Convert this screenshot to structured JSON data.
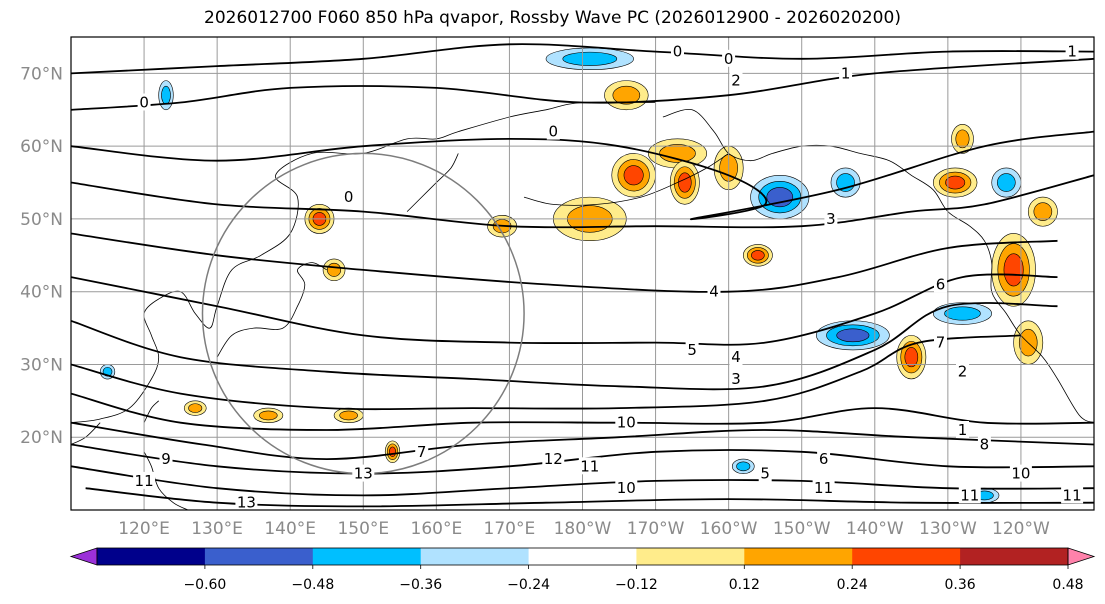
{
  "title": "2026012700 F060 850 hPa qvapor, Rossby Wave PC (2026012900 - 2026020200)",
  "map": {
    "lon_range": [
      110,
      250
    ],
    "lat_range": [
      10,
      75
    ],
    "lat_ticks": [
      {
        "value": 70,
        "label": "70°N"
      },
      {
        "value": 60,
        "label": "60°N"
      },
      {
        "value": 50,
        "label": "50°N"
      },
      {
        "value": 40,
        "label": "40°N"
      },
      {
        "value": 30,
        "label": "30°N"
      },
      {
        "value": 20,
        "label": "20°N"
      }
    ],
    "lon_ticks": [
      {
        "value": 120,
        "label": "120°E"
      },
      {
        "value": 130,
        "label": "130°E"
      },
      {
        "value": 140,
        "label": "140°E"
      },
      {
        "value": 150,
        "label": "150°E"
      },
      {
        "value": 160,
        "label": "160°E"
      },
      {
        "value": 170,
        "label": "170°E"
      },
      {
        "value": 180,
        "label": "180°W"
      },
      {
        "value": 190,
        "label": "170°W"
      },
      {
        "value": 200,
        "label": "160°W"
      },
      {
        "value": 210,
        "label": "150°W"
      },
      {
        "value": 220,
        "label": "140°W"
      },
      {
        "value": 230,
        "label": "130°W"
      },
      {
        "value": 240,
        "label": "120°W"
      }
    ],
    "grid": true,
    "contour_labels": [
      {
        "text": "0",
        "lon": 193,
        "lat": 73
      },
      {
        "text": "0",
        "lon": 200,
        "lat": 72
      },
      {
        "text": "2",
        "lon": 201,
        "lat": 69
      },
      {
        "text": "1",
        "lon": 216,
        "lat": 70
      },
      {
        "text": "0",
        "lon": 120,
        "lat": 66
      },
      {
        "text": "0",
        "lon": 176,
        "lat": 62
      },
      {
        "text": "0",
        "lon": 148,
        "lat": 53
      },
      {
        "text": "3",
        "lon": 214,
        "lat": 50
      },
      {
        "text": "4",
        "lon": 198,
        "lat": 40
      },
      {
        "text": "5",
        "lon": 195,
        "lat": 32
      },
      {
        "text": "4",
        "lon": 201,
        "lat": 31
      },
      {
        "text": "3",
        "lon": 201,
        "lat": 28
      },
      {
        "text": "10",
        "lon": 186,
        "lat": 22
      },
      {
        "text": "12",
        "lon": 176,
        "lat": 17
      },
      {
        "text": "13",
        "lon": 150,
        "lat": 15
      },
      {
        "text": "11",
        "lon": 181,
        "lat": 16
      },
      {
        "text": "10",
        "lon": 186,
        "lat": 13
      },
      {
        "text": "5",
        "lon": 205,
        "lat": 15
      },
      {
        "text": "6",
        "lon": 213,
        "lat": 17
      },
      {
        "text": "11",
        "lon": 213,
        "lat": 13
      },
      {
        "text": "8",
        "lon": 235,
        "lat": 19
      },
      {
        "text": "10",
        "lon": 240,
        "lat": 15
      },
      {
        "text": "11",
        "lon": 247,
        "lat": 12
      },
      {
        "text": "11",
        "lon": 233,
        "lat": 12
      },
      {
        "text": "1",
        "lon": 247,
        "lat": 73
      },
      {
        "text": "6",
        "lon": 229,
        "lat": 41
      },
      {
        "text": "7",
        "lon": 229,
        "lat": 33
      },
      {
        "text": "2",
        "lon": 232,
        "lat": 29
      },
      {
        "text": "1",
        "lon": 232,
        "lat": 21
      },
      {
        "text": "13",
        "lon": 134,
        "lat": 11
      },
      {
        "text": "9",
        "lon": 123,
        "lat": 17
      },
      {
        "text": "11",
        "lon": 120,
        "lat": 14
      },
      {
        "text": "7",
        "lon": 158,
        "lat": 18
      }
    ]
  },
  "colorbar": {
    "colors": [
      "#9b30d9",
      "#00008b",
      "#3a5fcd",
      "#00bfff",
      "#b0e2ff",
      "#ffffff",
      "#ffec8b",
      "#ffa500",
      "#ff4500",
      "#b22222",
      "#ff82ab"
    ],
    "tick_labels": [
      "-0.60",
      "-0.48",
      "-0.36",
      "-0.24",
      "-0.12",
      "0.12",
      "0.24",
      "0.36",
      "0.48",
      "0.60"
    ]
  },
  "chart_data": {
    "type": "heatmap",
    "title": "2026012700 F060 850 hPa qvapor, Rossby Wave PC (2026012900 - 2026020200)",
    "levels": [
      -0.6,
      -0.48,
      -0.36,
      -0.24,
      -0.12,
      0.12,
      0.24,
      0.36,
      0.48,
      0.6
    ],
    "anomaly_blobs": [
      {
        "lon": 181,
        "lat": 72,
        "rlon": 6,
        "rlat": 1.5,
        "value": -0.3
      },
      {
        "lon": 123,
        "lat": 67,
        "rlon": 1,
        "rlat": 2,
        "value": -0.3
      },
      {
        "lon": 186,
        "lat": 67,
        "rlon": 3,
        "rlat": 2,
        "value": 0.25
      },
      {
        "lon": 193,
        "lat": 59,
        "rlon": 4,
        "rlat": 2,
        "value": 0.3
      },
      {
        "lon": 200,
        "lat": 57,
        "rlon": 2,
        "rlat": 3,
        "value": 0.3
      },
      {
        "lon": 187,
        "lat": 56,
        "rlon": 3,
        "rlat": 3,
        "value": 0.4
      },
      {
        "lon": 194,
        "lat": 55,
        "rlon": 2,
        "rlat": 3,
        "value": 0.38
      },
      {
        "lon": 207,
        "lat": 53,
        "rlon": 4,
        "rlat": 3,
        "value": -0.4
      },
      {
        "lon": 181,
        "lat": 50,
        "rlon": 5,
        "rlat": 3,
        "value": 0.35
      },
      {
        "lon": 169,
        "lat": 49,
        "rlon": 2,
        "rlat": 1.5,
        "value": 0.25
      },
      {
        "lon": 144,
        "lat": 50,
        "rlon": 2,
        "rlat": 2,
        "value": 0.38
      },
      {
        "lon": 146,
        "lat": 43,
        "rlon": 1.5,
        "rlat": 1.5,
        "value": 0.35
      },
      {
        "lon": 204,
        "lat": 45,
        "rlon": 2,
        "rlat": 1.5,
        "value": 0.36
      },
      {
        "lon": 216,
        "lat": 55,
        "rlon": 2,
        "rlat": 2,
        "value": -0.3
      },
      {
        "lon": 231,
        "lat": 55,
        "rlon": 3,
        "rlat": 2,
        "value": 0.38
      },
      {
        "lon": 239,
        "lat": 43,
        "rlon": 3,
        "rlat": 5,
        "value": 0.45
      },
      {
        "lon": 232,
        "lat": 37,
        "rlon": 4,
        "rlat": 1.5,
        "value": -0.3
      },
      {
        "lon": 225,
        "lat": 31,
        "rlon": 2,
        "rlat": 3,
        "value": 0.4
      },
      {
        "lon": 217,
        "lat": 34,
        "rlon": 5,
        "rlat": 2,
        "value": -0.4
      },
      {
        "lon": 241,
        "lat": 33,
        "rlon": 2,
        "rlat": 3,
        "value": 0.35
      },
      {
        "lon": 115,
        "lat": 29,
        "rlon": 1,
        "rlat": 1,
        "value": -0.25
      },
      {
        "lon": 127,
        "lat": 24,
        "rlon": 1.5,
        "rlat": 1,
        "value": 0.25
      },
      {
        "lon": 137,
        "lat": 23,
        "rlon": 2,
        "rlat": 1,
        "value": 0.3
      },
      {
        "lon": 148,
        "lat": 23,
        "rlon": 2,
        "rlat": 1,
        "value": 0.28
      },
      {
        "lon": 154,
        "lat": 18,
        "rlon": 1,
        "rlat": 1.5,
        "value": 0.38
      },
      {
        "lon": 202,
        "lat": 16,
        "rlon": 1.5,
        "rlat": 1,
        "value": -0.3
      },
      {
        "lon": 235,
        "lat": 12,
        "rlon": 2,
        "rlat": 1,
        "value": -0.3
      },
      {
        "lon": 232,
        "lat": 61,
        "rlon": 1.5,
        "rlat": 2,
        "value": 0.25
      },
      {
        "lon": 238,
        "lat": 55,
        "rlon": 2,
        "rlat": 2,
        "value": -0.3
      },
      {
        "lon": 243,
        "lat": 51,
        "rlon": 2,
        "rlat": 2,
        "value": 0.3
      }
    ],
    "contours": [
      {
        "level": "0",
        "points": [
          [
            110,
            70
          ],
          [
            130,
            71
          ],
          [
            150,
            72
          ],
          [
            170,
            74
          ],
          [
            190,
            73
          ],
          [
            210,
            72
          ],
          [
            230,
            73
          ],
          [
            250,
            73
          ]
        ]
      },
      {
        "level": "1",
        "points": [
          [
            110,
            65
          ],
          [
            125,
            66
          ],
          [
            140,
            68
          ],
          [
            160,
            68
          ],
          [
            180,
            66
          ],
          [
            200,
            67
          ],
          [
            220,
            70
          ],
          [
            250,
            72
          ]
        ]
      },
      {
        "level": "2",
        "points": [
          [
            110,
            60
          ],
          [
            130,
            58
          ],
          [
            150,
            60
          ],
          [
            170,
            61
          ],
          [
            185,
            60
          ],
          [
            200,
            56
          ],
          [
            205,
            52
          ],
          [
            195,
            50
          ],
          [
            215,
            54
          ],
          [
            235,
            60
          ],
          [
            250,
            62
          ]
        ]
      },
      {
        "level": "3",
        "points": [
          [
            110,
            55
          ],
          [
            130,
            52
          ],
          [
            150,
            51
          ],
          [
            170,
            49
          ],
          [
            190,
            49
          ],
          [
            210,
            49
          ],
          [
            225,
            51
          ],
          [
            235,
            52
          ],
          [
            250,
            56
          ]
        ]
      },
      {
        "level": "4",
        "points": [
          [
            110,
            48
          ],
          [
            130,
            45
          ],
          [
            150,
            43
          ],
          [
            175,
            41
          ],
          [
            200,
            40
          ],
          [
            215,
            42
          ],
          [
            230,
            46
          ],
          [
            245,
            47
          ]
        ]
      },
      {
        "level": "5",
        "points": [
          [
            110,
            42
          ],
          [
            130,
            38
          ],
          [
            150,
            34
          ],
          [
            170,
            33
          ],
          [
            190,
            33
          ],
          [
            205,
            33
          ],
          [
            220,
            37
          ],
          [
            232,
            42
          ],
          [
            245,
            42
          ]
        ]
      },
      {
        "level": "6",
        "points": [
          [
            110,
            36
          ],
          [
            125,
            31
          ],
          [
            145,
            29
          ],
          [
            165,
            28
          ],
          [
            185,
            27
          ],
          [
            205,
            27
          ],
          [
            220,
            32
          ],
          [
            230,
            38
          ],
          [
            245,
            38
          ]
        ]
      },
      {
        "level": "7",
        "points": [
          [
            110,
            30
          ],
          [
            125,
            26
          ],
          [
            145,
            24
          ],
          [
            165,
            24
          ],
          [
            185,
            24
          ],
          [
            205,
            25
          ],
          [
            218,
            29
          ],
          [
            226,
            33
          ],
          [
            240,
            34
          ]
        ]
      },
      {
        "level": "8",
        "points": [
          [
            110,
            26
          ],
          [
            125,
            22
          ],
          [
            145,
            21
          ],
          [
            165,
            22
          ],
          [
            185,
            22
          ],
          [
            205,
            22
          ],
          [
            220,
            24
          ],
          [
            235,
            22
          ],
          [
            250,
            22
          ]
        ]
      },
      {
        "level": "9",
        "points": [
          [
            110,
            22
          ],
          [
            128,
            19
          ],
          [
            145,
            17
          ],
          [
            165,
            19
          ],
          [
            185,
            20
          ],
          [
            205,
            21
          ],
          [
            225,
            20
          ],
          [
            250,
            19
          ]
        ]
      },
      {
        "level": "10",
        "points": [
          [
            110,
            19
          ],
          [
            130,
            16
          ],
          [
            150,
            15
          ],
          [
            170,
            16
          ],
          [
            190,
            18
          ],
          [
            210,
            18
          ],
          [
            230,
            16
          ],
          [
            250,
            16
          ]
        ]
      },
      {
        "level": "11",
        "points": [
          [
            110,
            16
          ],
          [
            130,
            13
          ],
          [
            150,
            12
          ],
          [
            170,
            13
          ],
          [
            190,
            14
          ],
          [
            210,
            14
          ],
          [
            230,
            13
          ],
          [
            250,
            13
          ]
        ]
      },
      {
        "level": "12",
        "points": [
          [
            112,
            13
          ],
          [
            130,
            11
          ],
          [
            150,
            10.5
          ],
          [
            175,
            11
          ],
          [
            200,
            11.5
          ],
          [
            225,
            11
          ],
          [
            250,
            11
          ]
        ]
      }
    ],
    "range_ring": {
      "lon": 150,
      "lat": 37,
      "radius_deg": 22
    }
  }
}
